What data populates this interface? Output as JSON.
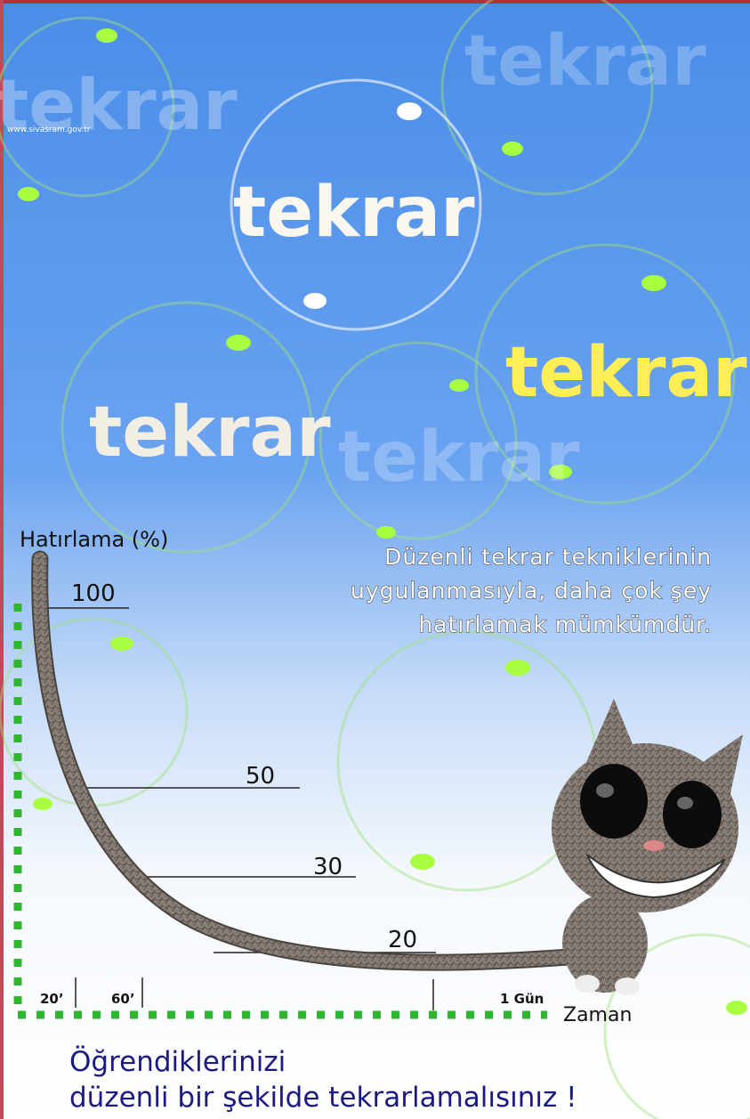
{
  "site": "www.sivasram.gov.tr",
  "bubble_words": [
    "tekrar",
    "tekrar",
    "tekrar",
    "tekrar",
    "tekrar",
    "tekrar"
  ],
  "graph": {
    "y_label": "Hatırlama (%)",
    "x_label": "Zaman",
    "levels": [
      "100",
      "50",
      "30",
      "20"
    ],
    "times": [
      "20’",
      "60’",
      "1 Gün"
    ],
    "note": [
      "Düzenli tekrar tekniklerinin",
      "uygulanmasıyla, daha çok şey",
      "hatırlamak mümkümdür."
    ]
  },
  "footer": [
    "Öğrendiklerinizi",
    "düzenli bir şekilde tekrarlamalısınız !"
  ]
}
